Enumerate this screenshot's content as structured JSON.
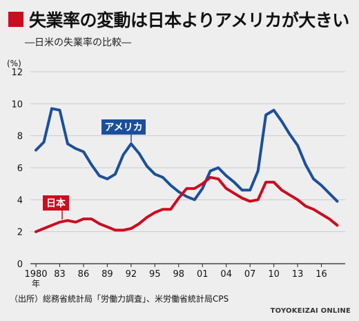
{
  "title": "失業率の変動は日本よりアメリカが大きい",
  "subtitle": "―日米の失業率の比較―",
  "source": "（出所）総務省統計局「労働力調査」、米労働省統計局CPS",
  "credit": "TOYOKEIZAI ONLINE",
  "colors": {
    "accent": "#cc0c1f",
    "us": "#1b4f9c",
    "japan": "#cc0c1f"
  },
  "title_icon": "red-square-marker",
  "chart_data": {
    "type": "line",
    "unit": "(%)",
    "x": [
      1980,
      1981,
      1982,
      1983,
      1984,
      1985,
      1986,
      1987,
      1988,
      1989,
      1990,
      1991,
      1992,
      1993,
      1994,
      1995,
      1996,
      1997,
      1998,
      1999,
      2000,
      2001,
      2002,
      2003,
      2004,
      2005,
      2006,
      2007,
      2008,
      2009,
      2010,
      2011,
      2012,
      2013,
      2014,
      2015,
      2016,
      2017,
      2018
    ],
    "xticks": [
      1980,
      1983,
      1986,
      1989,
      1992,
      1995,
      1998,
      2001,
      2004,
      2007,
      2010,
      2013,
      2016
    ],
    "xtick_labels": [
      "1980",
      "83",
      "86",
      "89",
      "92",
      "95",
      "98",
      "01",
      "04",
      "07",
      "10",
      "13",
      "16"
    ],
    "x_unit_label": "年",
    "ylim": [
      0,
      12
    ],
    "yticks": [
      0,
      2,
      4,
      6,
      8,
      10,
      12
    ],
    "grid": true,
    "series": [
      {
        "name": "アメリカ",
        "values": [
          7.1,
          7.6,
          9.7,
          9.6,
          7.5,
          7.2,
          7.0,
          6.2,
          5.5,
          5.3,
          5.6,
          6.8,
          7.5,
          6.9,
          6.1,
          5.6,
          5.4,
          4.9,
          4.5,
          4.2,
          4.0,
          4.7,
          5.8,
          6.0,
          5.5,
          5.1,
          4.6,
          4.6,
          5.8,
          9.3,
          9.6,
          8.9,
          8.1,
          7.4,
          6.2,
          5.3,
          4.9,
          4.4,
          3.9
        ]
      },
      {
        "name": "日本",
        "values": [
          2.0,
          2.2,
          2.4,
          2.6,
          2.7,
          2.6,
          2.8,
          2.8,
          2.5,
          2.3,
          2.1,
          2.1,
          2.2,
          2.5,
          2.9,
          3.2,
          3.4,
          3.4,
          4.1,
          4.7,
          4.7,
          5.0,
          5.4,
          5.3,
          4.7,
          4.4,
          4.1,
          3.9,
          4.0,
          5.1,
          5.1,
          4.6,
          4.3,
          4.0,
          3.6,
          3.4,
          3.1,
          2.8,
          2.4
        ]
      }
    ]
  }
}
